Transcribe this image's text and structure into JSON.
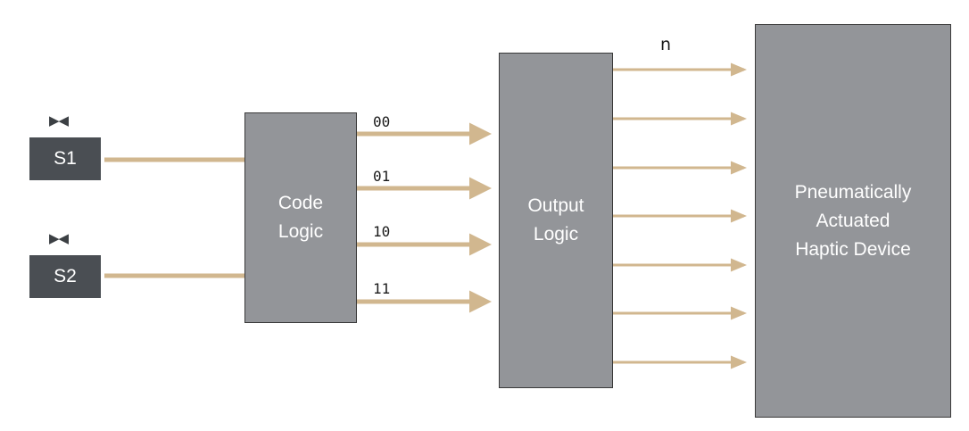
{
  "colors": {
    "wire": "#d1b78f",
    "block": "#939599",
    "switch": "#4a4e53",
    "text": "#ffffff"
  },
  "switches": [
    {
      "label": "S1",
      "icon": "bowtie-icon"
    },
    {
      "label": "S2",
      "icon": "bowtie-icon"
    }
  ],
  "blocks": {
    "code_logic": "Code\nLogic",
    "output_logic": "Output\nLogic",
    "haptic_device": "Pneumatically\nActuated\nHaptic Device"
  },
  "codes": [
    "00",
    "01",
    "10",
    "11"
  ],
  "output_label": "n"
}
